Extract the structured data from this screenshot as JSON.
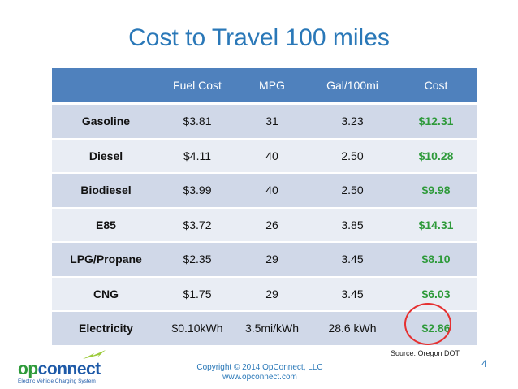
{
  "slide": {
    "title": "Cost to Travel 100 miles",
    "source": "Source: Oregon DOT",
    "page_number": "4",
    "copyright_line1": "Copyright © 2014 OpConnect, LLC",
    "copyright_line2": "www.opconnect.com"
  },
  "logo": {
    "word_part1": "op",
    "word_part2": "connect",
    "tagline": "Electric Vehicle Charging System"
  },
  "table": {
    "headers": [
      "",
      "Fuel Cost",
      "MPG",
      "Gal/100mi",
      "Cost"
    ],
    "rows": [
      {
        "fuel": "Gasoline",
        "fuel_cost": "$3.81",
        "mpg": "31",
        "gal": "3.23",
        "cost": "$12.31"
      },
      {
        "fuel": "Diesel",
        "fuel_cost": "$4.11",
        "mpg": "40",
        "gal": "2.50",
        "cost": "$10.28"
      },
      {
        "fuel": "Biodiesel",
        "fuel_cost": "$3.99",
        "mpg": "40",
        "gal": "2.50",
        "cost": "$9.98"
      },
      {
        "fuel": "E85",
        "fuel_cost": "$3.72",
        "mpg": "26",
        "gal": "3.85",
        "cost": "$14.31"
      },
      {
        "fuel": "LPG/Propane",
        "fuel_cost": "$2.35",
        "mpg": "29",
        "gal": "3.45",
        "cost": "$8.10"
      },
      {
        "fuel": "CNG",
        "fuel_cost": "$1.75",
        "mpg": "29",
        "gal": "3.45",
        "cost": "$6.03"
      },
      {
        "fuel": "Electricity",
        "fuel_cost": "$0.10kWh",
        "mpg": "3.5mi/kWh",
        "gal": "28.6 kWh",
        "cost": "$2.86"
      }
    ]
  },
  "colors": {
    "title": "#2a78b8",
    "header_bg": "#4f81bd",
    "row_dark": "#d0d8e8",
    "row_light": "#e9edf4",
    "cost_green": "#2e9a3a",
    "highlight_circle": "#e53030"
  },
  "icons": {
    "logo_bolt": "lightning-bolt-icon"
  }
}
